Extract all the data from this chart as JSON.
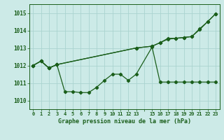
{
  "title": "Graphe pression niveau de la mer (hPa)",
  "bg_color": "#cceae7",
  "grid_color": "#aad4d0",
  "line_color": "#1a5e1a",
  "xlim": [
    -0.5,
    23.5
  ],
  "ylim": [
    1009.5,
    1015.5
  ],
  "yticks": [
    1010,
    1011,
    1012,
    1013,
    1014,
    1015
  ],
  "xticks": [
    0,
    1,
    2,
    3,
    4,
    5,
    6,
    7,
    8,
    9,
    10,
    11,
    12,
    13,
    14,
    15,
    16,
    17,
    18,
    19,
    20,
    21,
    22,
    23
  ],
  "xtick_labels": [
    "0",
    "1",
    "2",
    "3",
    "4",
    "5",
    "6",
    "7",
    "8",
    "9",
    "10",
    "11",
    "12",
    "13",
    "",
    "15",
    "16",
    "17",
    "18",
    "19",
    "20",
    "21",
    "22",
    "23"
  ],
  "line1_x": [
    0,
    1,
    2,
    3,
    4,
    5,
    6,
    7,
    8,
    9,
    10,
    11,
    12,
    13,
    15,
    16,
    17,
    18,
    19,
    20,
    21,
    22,
    23
  ],
  "line1_y": [
    1012.0,
    1012.25,
    1011.85,
    1012.05,
    1010.5,
    1010.5,
    1010.45,
    1010.45,
    1010.75,
    1011.15,
    1011.5,
    1011.5,
    1011.15,
    1011.5,
    1013.05,
    1011.05,
    1011.05,
    1011.05,
    1011.05,
    1011.05,
    1011.05,
    1011.05,
    1011.05
  ],
  "line2_x": [
    0,
    1,
    2,
    3,
    13,
    15,
    16,
    17,
    18,
    19,
    20,
    21,
    22,
    23
  ],
  "line2_y": [
    1012.0,
    1012.25,
    1011.85,
    1012.05,
    1013.0,
    1013.1,
    1013.3,
    1013.5,
    1013.55,
    1013.6,
    1013.65,
    1014.05,
    1014.5,
    1014.95
  ],
  "line3_x": [
    0,
    1,
    2,
    3,
    13,
    15,
    16,
    17,
    18,
    19,
    20,
    21,
    22,
    23
  ],
  "line3_y": [
    1012.0,
    1012.25,
    1011.85,
    1012.05,
    1013.0,
    1013.1,
    1013.3,
    1013.55,
    1013.55,
    1013.6,
    1013.65,
    1014.1,
    1014.5,
    1014.95
  ]
}
